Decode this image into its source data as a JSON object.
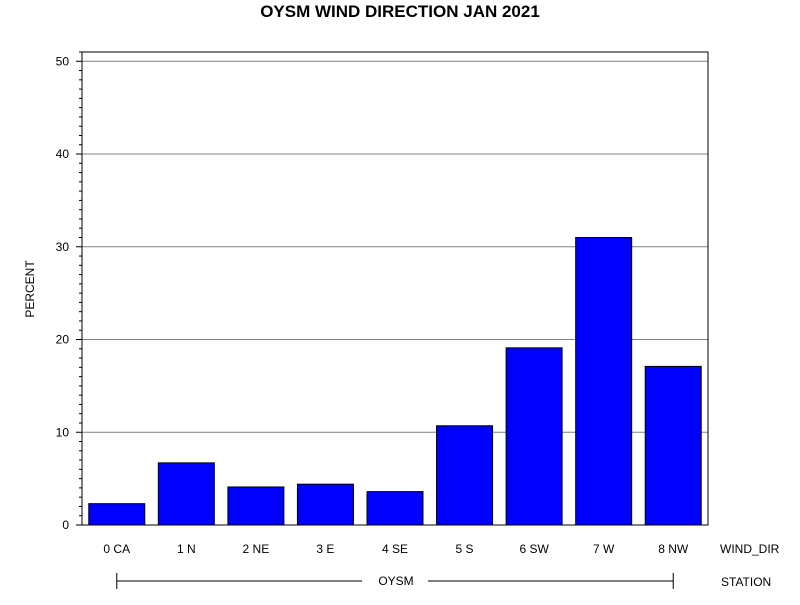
{
  "chart_data": {
    "type": "bar",
    "title": "OYSM WIND DIRECTION JAN 2021",
    "ylabel": "PERCENT",
    "xlabel": "WIND_DIR",
    "group_label": "STATION",
    "group_value": "OYSM",
    "categories": [
      "0 CA",
      "1 N",
      "2 NE",
      "3 E",
      "4 SE",
      "5 S",
      "6 SW",
      "7 W",
      "8 NW"
    ],
    "values": [
      2.3,
      6.7,
      4.1,
      4.4,
      3.6,
      10.7,
      19.1,
      31.0,
      17.1
    ],
    "ylim": [
      0,
      51
    ],
    "yticks": [
      0,
      10,
      20,
      30,
      40,
      50
    ],
    "grid": true,
    "bar_color": "#0000ff",
    "bar_edge_color": "#000000"
  }
}
